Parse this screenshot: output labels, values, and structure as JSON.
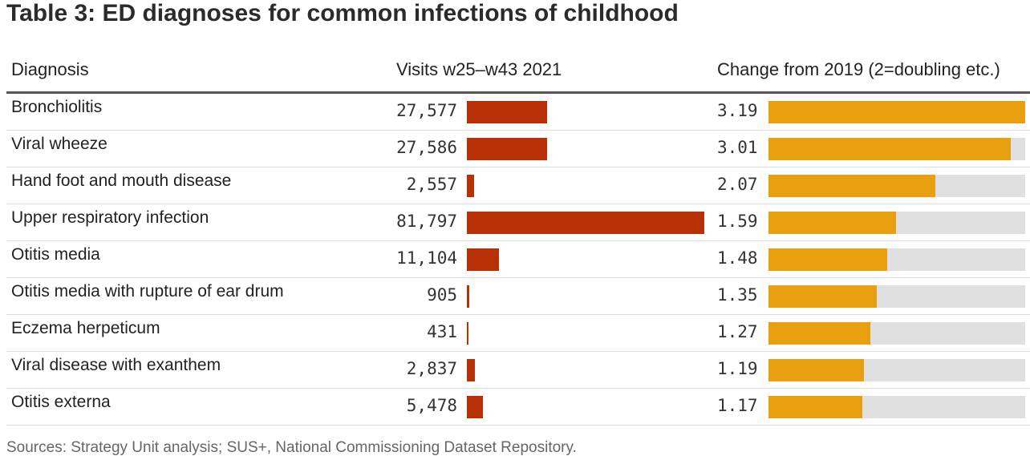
{
  "title": "Table 3: ED diagnoses for common infections of childhood",
  "headers": {
    "diagnosis": "Diagnosis",
    "visits": "Visits w25–w43 2021",
    "change": "Change from 2019 (2=doubling etc.)"
  },
  "source": "Sources: Strategy Unit analysis; SUS+, National Commissioning Dataset Repository.",
  "colors": {
    "visits_bar": "#b83006",
    "change_bar": "#e8a010",
    "change_track": "#e0e0e0"
  },
  "chart_data": {
    "type": "table",
    "title": "Table 3: ED diagnoses for common infections of childhood",
    "columns": [
      "Diagnosis",
      "Visits w25–w43 2021",
      "Change from 2019 (2=doubling etc.)"
    ],
    "visits_max": 81797,
    "change_max": 3.19,
    "rows": [
      {
        "diagnosis": "Bronchiolitis",
        "visits": 27577,
        "visits_label": "27,577",
        "change": 3.19,
        "change_label": "3.19"
      },
      {
        "diagnosis": "Viral wheeze",
        "visits": 27586,
        "visits_label": "27,586",
        "change": 3.01,
        "change_label": "3.01"
      },
      {
        "diagnosis": "Hand foot and mouth disease",
        "visits": 2557,
        "visits_label": "2,557",
        "change": 2.07,
        "change_label": "2.07"
      },
      {
        "diagnosis": "Upper respiratory infection",
        "visits": 81797,
        "visits_label": "81,797",
        "change": 1.59,
        "change_label": "1.59"
      },
      {
        "diagnosis": "Otitis media",
        "visits": 11104,
        "visits_label": "11,104",
        "change": 1.48,
        "change_label": "1.48"
      },
      {
        "diagnosis": "Otitis media with rupture of ear drum",
        "visits": 905,
        "visits_label": "905",
        "change": 1.35,
        "change_label": "1.35"
      },
      {
        "diagnosis": "Eczema herpeticum",
        "visits": 431,
        "visits_label": "431",
        "change": 1.27,
        "change_label": "1.27"
      },
      {
        "diagnosis": "Viral disease with exanthem",
        "visits": 2837,
        "visits_label": "2,837",
        "change": 1.19,
        "change_label": "1.19"
      },
      {
        "diagnosis": "Otitis externa",
        "visits": 5478,
        "visits_label": "5,478",
        "change": 1.17,
        "change_label": "1.17"
      }
    ]
  }
}
